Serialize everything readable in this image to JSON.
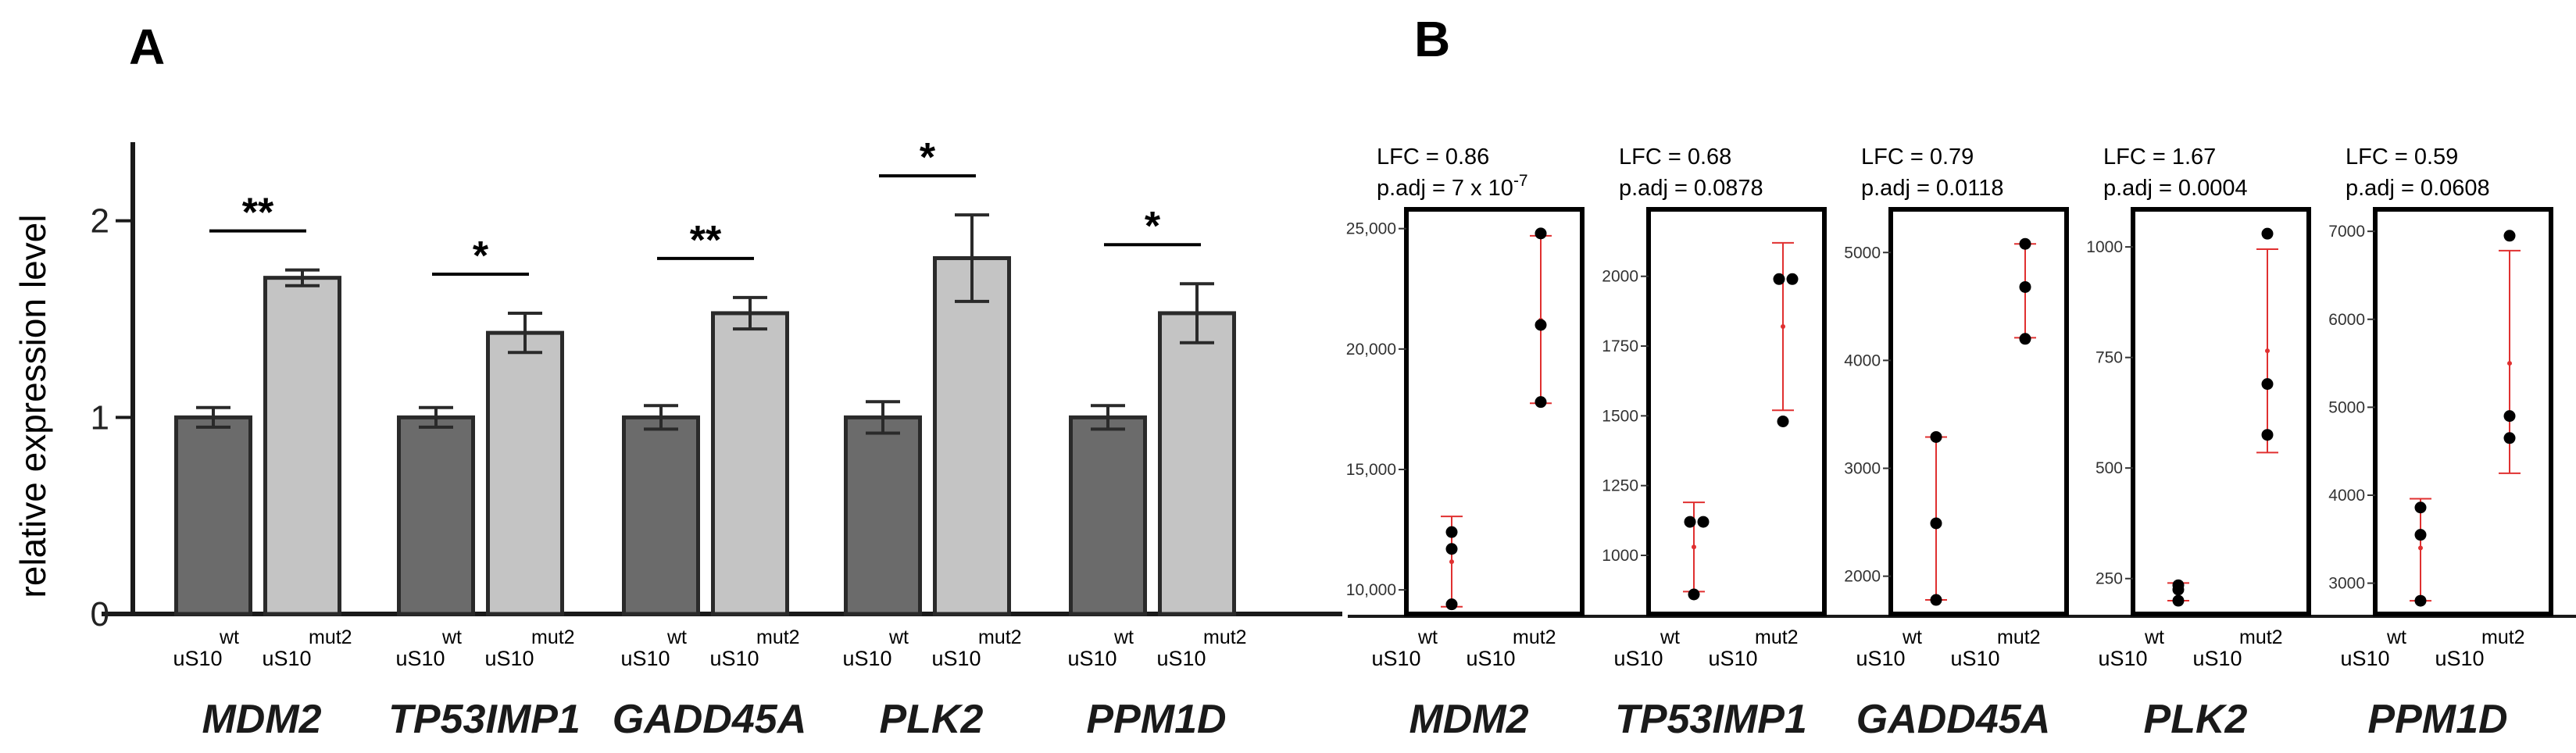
{
  "chart_data": [
    {
      "type": "bar",
      "panel_label": "A",
      "ylabel": "relative expression level",
      "ylim": [
        0,
        2.4
      ],
      "yticks": [
        "0",
        "1",
        "2"
      ],
      "ytick_values": [
        0,
        1,
        2
      ],
      "genes": [
        "MDM2",
        "TP53IMP1",
        "GADD45A",
        "PLK2",
        "PPM1D"
      ],
      "conditions": [
        {
          "base": "uS10",
          "sup": "wt"
        },
        {
          "base": "uS10",
          "sup": "mut2"
        }
      ],
      "series": [
        {
          "name": "uS10 wt",
          "color": "#6b6b6b",
          "values": [
            1.0,
            1.0,
            1.0,
            1.0,
            1.0
          ],
          "errors": [
            0.05,
            0.05,
            0.06,
            0.08,
            0.06
          ]
        },
        {
          "name": "uS10 mut2",
          "color": "#c4c4c4",
          "values": [
            1.71,
            1.43,
            1.53,
            1.81,
            1.53
          ],
          "errors": [
            0.04,
            0.1,
            0.08,
            0.22,
            0.15
          ]
        }
      ],
      "significance": [
        "**",
        "*",
        "**",
        "*",
        "*"
      ]
    },
    {
      "type": "scatter",
      "panel_label": "B",
      "genes": [
        "MDM2",
        "TP53IMP1",
        "GADD45A",
        "PLK2",
        "PPM1D"
      ],
      "conditions": [
        {
          "base": "uS10",
          "sup": "wt"
        },
        {
          "base": "uS10",
          "sup": "mut2"
        }
      ],
      "point_color": "#000000",
      "summary_color": "#e03030",
      "subplots": [
        {
          "gene": "MDM2",
          "lfc": "LFC = 0.86",
          "padj_base": "p.adj = 7 x 10",
          "padj_exp": "-7",
          "ylim": [
            9000,
            25800
          ],
          "ticks": [
            "10,000",
            "15,000",
            "20,000",
            "25,000"
          ],
          "tick_values": [
            10000,
            15000,
            20000,
            25000
          ],
          "wt": {
            "points": [
              9400,
              11700,
              12400
            ],
            "mean": 11170,
            "low": 9300,
            "high": 13050
          },
          "mut2": {
            "points": [
              17800,
              21000,
              24800
            ],
            "mean": 21200,
            "low": 17750,
            "high": 24700
          }
        },
        {
          "gene": "TP53IMP1",
          "lfc": "LFC = 0.68",
          "padj_base": "p.adj = 0.0878",
          "padj_exp": "",
          "ylim": [
            790,
            2240
          ],
          "ticks": [
            "1000",
            "1250",
            "1500",
            "1750",
            "2000"
          ],
          "tick_values": [
            1000,
            1250,
            1500,
            1750,
            2000
          ],
          "wt": {
            "points": [
              860,
              1120,
              1120
            ],
            "mean": 1030,
            "low": 870,
            "high": 1190
          },
          "mut2": {
            "points": [
              1480,
              1990,
              1990
            ],
            "mean": 1820,
            "low": 1520,
            "high": 2120
          }
        },
        {
          "gene": "GADD45A",
          "lfc": "LFC = 0.79",
          "padj_base": "p.adj = 0.0118",
          "padj_exp": "",
          "ylim": [
            1650,
            5400
          ],
          "ticks": [
            "2000",
            "3000",
            "4000",
            "5000"
          ],
          "tick_values": [
            2000,
            3000,
            4000,
            5000
          ],
          "wt": {
            "points": [
              1780,
              2490,
              3290
            ],
            "mean": 2520,
            "low": 1780,
            "high": 3290
          },
          "mut2": {
            "points": [
              4200,
              4680,
              5080
            ],
            "mean": 4650,
            "low": 4210,
            "high": 5080
          }
        },
        {
          "gene": "PLK2",
          "lfc": "LFC = 1.67",
          "padj_base": "p.adj = 0.0004",
          "padj_exp": "",
          "ylim": [
            170,
            1085
          ],
          "ticks": [
            "250",
            "500",
            "750",
            "1000"
          ],
          "tick_values": [
            250,
            500,
            750,
            1000
          ],
          "wt": {
            "points": [
              200,
              225,
              235
            ],
            "mean": 220,
            "low": 200,
            "high": 240
          },
          "mut2": {
            "points": [
              575,
              690,
              1030
            ],
            "mean": 765,
            "low": 535,
            "high": 995
          }
        },
        {
          "gene": "PPM1D",
          "lfc": "LFC = 0.59",
          "padj_base": "p.adj = 0.0608",
          "padj_exp": "",
          "ylim": [
            2650,
            7250
          ],
          "ticks": [
            "3000",
            "4000",
            "5000",
            "6000",
            "7000"
          ],
          "tick_values": [
            3000,
            4000,
            5000,
            6000,
            7000
          ],
          "wt": {
            "points": [
              2800,
              3550,
              3860
            ],
            "mean": 3400,
            "low": 2800,
            "high": 3960
          },
          "mut2": {
            "points": [
              4650,
              4900,
              6950
            ],
            "mean": 5500,
            "low": 4250,
            "high": 6780
          }
        }
      ]
    }
  ]
}
